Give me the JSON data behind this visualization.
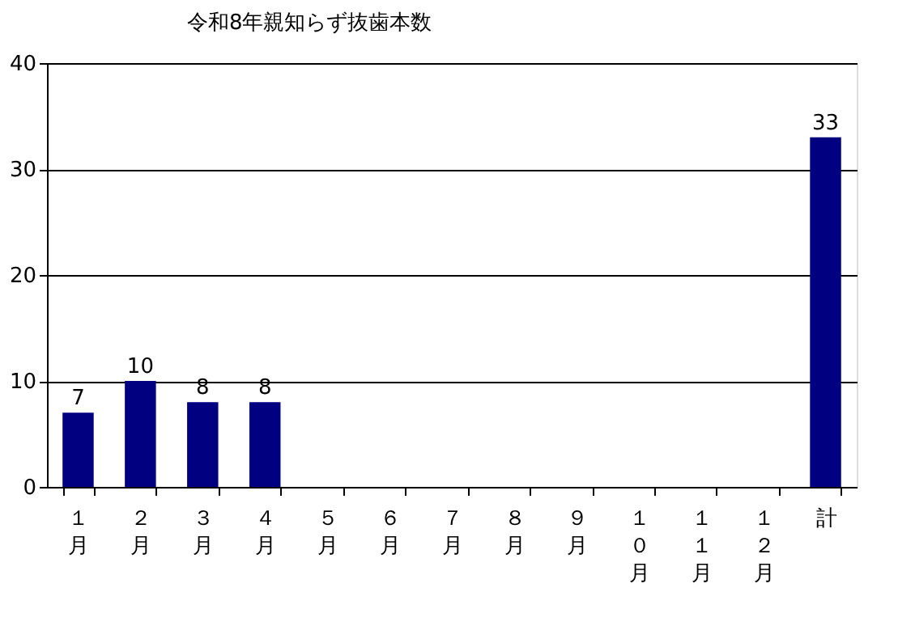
{
  "chart_data": {
    "type": "bar",
    "title": "令和8年親知らず抜歯本数",
    "categories": [
      "１月",
      "２月",
      "３月",
      "４月",
      "５月",
      "６月",
      "７月",
      "８月",
      "９月",
      "１０月",
      "１１月",
      "１２月",
      "計"
    ],
    "values": [
      7,
      10,
      8,
      8,
      null,
      null,
      null,
      null,
      null,
      null,
      null,
      null,
      33
    ],
    "color": "#000080",
    "ylim": [
      0,
      40
    ],
    "yticks": [
      0,
      10,
      20,
      30,
      40
    ],
    "grid": "y",
    "data_labels": true
  }
}
